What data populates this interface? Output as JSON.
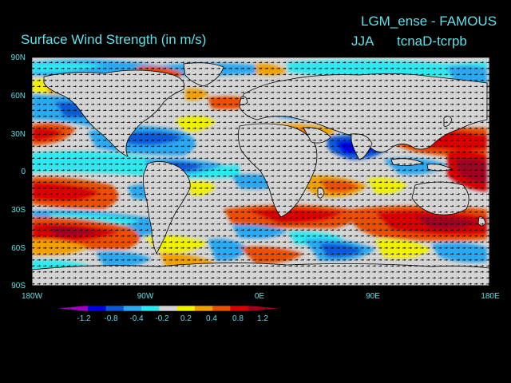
{
  "title": {
    "right": "LGM_ense - FAMOUS",
    "left": "Surface Wind Strength (in m/s)",
    "season": "JJA",
    "experiment": "tcnaD-tcrpb"
  },
  "axes": {
    "lat_labels": [
      "90N",
      "60N",
      "30N",
      "0",
      "30S",
      "60S",
      "90S"
    ],
    "lon_labels": [
      "180W",
      "90W",
      "0E",
      "90E",
      "180E"
    ]
  },
  "colorbar": {
    "labels": [
      "-1.2",
      "-0.8",
      "-0.4",
      "-0.2",
      "0.2",
      "0.4",
      "0.8",
      "1.2"
    ],
    "colors": [
      "#a000c0",
      "#0000e0",
      "#0a5ad8",
      "#2ca8f0",
      "#2ee8f0",
      "#d4d4d4",
      "#f0f000",
      "#f0a000",
      "#e85000",
      "#d80000",
      "#a00020"
    ]
  },
  "map_colors": {
    "ocean_neutral": "#d4d4d4",
    "coastline": "#000000",
    "vector": "#000000"
  }
}
